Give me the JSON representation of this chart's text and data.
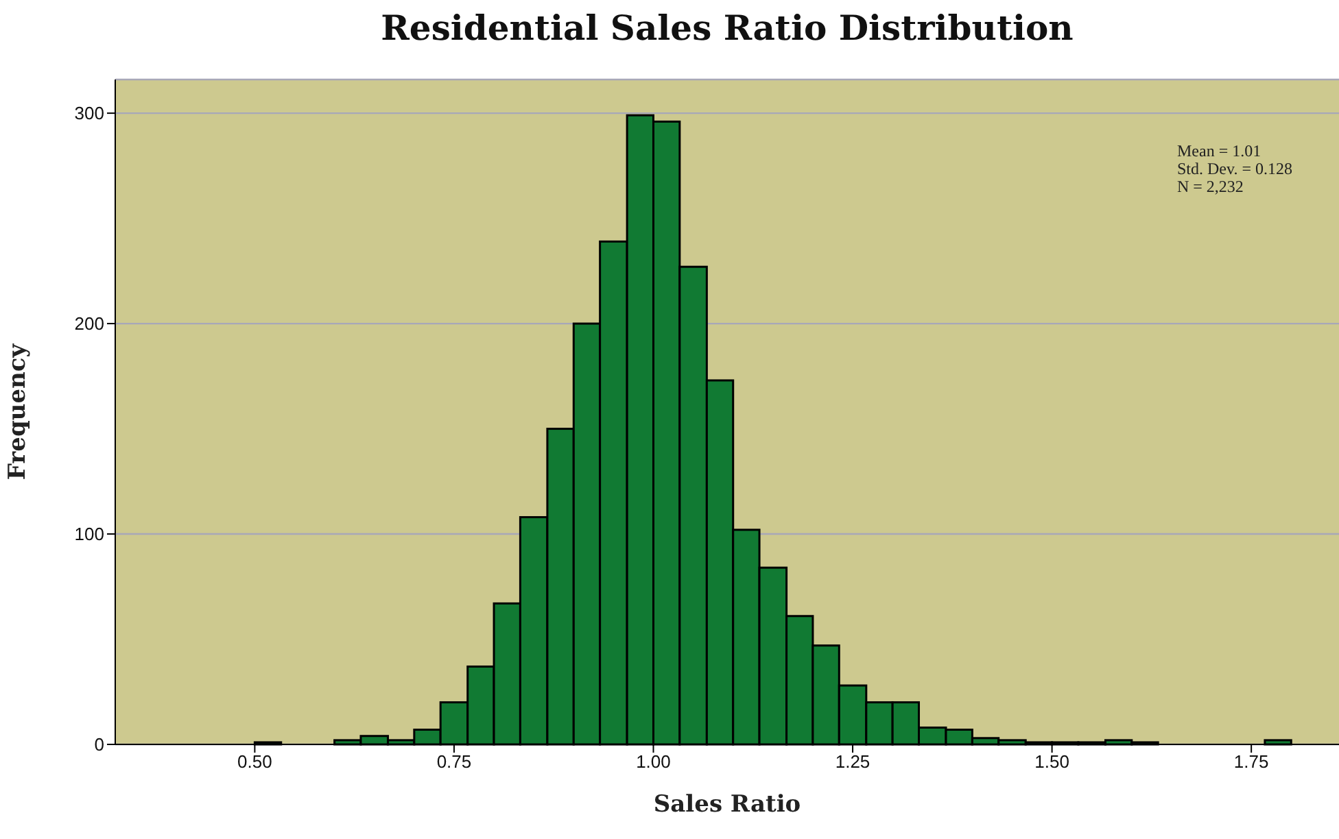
{
  "chart_data": {
    "type": "histogram",
    "title": "Residential Sales Ratio Distribution",
    "xlabel": "Sales Ratio",
    "ylabel": "Frequency",
    "bins": [
      0.5,
      0.533,
      0.6,
      0.633,
      0.667,
      0.7,
      0.733,
      0.767,
      0.8,
      0.833,
      0.867,
      0.9,
      0.933,
      0.967,
      1.0,
      1.033,
      1.067,
      1.1,
      1.133,
      1.167,
      1.2,
      1.233,
      1.267,
      1.3,
      1.333,
      1.367,
      1.4,
      1.433,
      1.467,
      1.5,
      1.533,
      1.567,
      1.6,
      1.633,
      1.767,
      1.8
    ],
    "values": [
      1,
      0,
      2,
      4,
      2,
      7,
      20,
      37,
      67,
      108,
      150,
      200,
      239,
      299,
      296,
      227,
      173,
      102,
      84,
      61,
      47,
      28,
      20,
      20,
      8,
      7,
      3,
      2,
      1,
      1,
      1,
      2,
      1,
      0,
      2
    ],
    "color": "#117a33",
    "xlim": [
      0.325,
      1.86
    ],
    "xticks": [
      {
        "value": 0.5,
        "label": "0.50"
      },
      {
        "value": 0.75,
        "label": "0.75"
      },
      {
        "value": 1.0,
        "label": "1.00"
      },
      {
        "value": 1.25,
        "label": "1.25"
      },
      {
        "value": 1.5,
        "label": "1.50"
      },
      {
        "value": 1.75,
        "label": "1.75"
      }
    ],
    "ylim": [
      0,
      316
    ],
    "yticks": [
      0,
      100,
      200,
      300
    ],
    "grid": "y",
    "annotations": [
      "Mean = 1.01",
      "Std. Dev. = 0.128",
      "N = 2,232"
    ]
  }
}
